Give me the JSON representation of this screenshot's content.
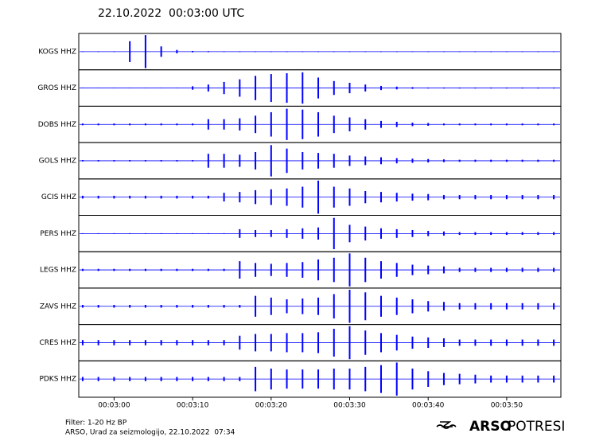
{
  "chart_data": {
    "type": "seismogram",
    "title": "22.10.2022  00:03:00 UTC",
    "x": [
      176,
      178,
      180,
      182,
      184,
      186,
      188,
      190,
      192,
      194,
      196,
      198,
      200,
      202,
      204,
      206,
      208,
      210,
      212,
      214,
      216,
      218,
      220,
      222,
      224,
      226,
      228,
      230,
      232,
      234,
      236
    ],
    "xlim": [
      175.5,
      236.9
    ],
    "xticks": [
      {
        "value": 180,
        "label": "00:03:00"
      },
      {
        "value": 190,
        "label": "00:03:10"
      },
      {
        "value": 200,
        "label": "00:03:20"
      },
      {
        "value": 210,
        "label": "00:03:30"
      },
      {
        "value": 220,
        "label": "00:03:40"
      },
      {
        "value": 230,
        "label": "00:03:50"
      }
    ],
    "series": [
      {
        "name": "KOGS HHZ",
        "color": "#0000ff",
        "values": [
          0.02,
          0.02,
          0.02,
          0.6,
          0.95,
          0.3,
          0.1,
          0.04,
          0.03,
          0.02,
          0.02,
          0.02,
          0.02,
          0.02,
          0.02,
          0.02,
          0.02,
          0.02,
          0.02,
          0.02,
          0.02,
          0.02,
          0.02,
          0.02,
          0.02,
          0.02,
          0.02,
          0.02,
          0.02,
          0.02,
          0.02
        ]
      },
      {
        "name": "GROS HHZ",
        "color": "#0000ff",
        "values": [
          0.02,
          0.02,
          0.02,
          0.02,
          0.02,
          0.02,
          0.02,
          0.1,
          0.2,
          0.35,
          0.5,
          0.7,
          0.8,
          0.85,
          0.9,
          0.6,
          0.4,
          0.3,
          0.2,
          0.12,
          0.08,
          0.05,
          0.03,
          0.03,
          0.03,
          0.03,
          0.03,
          0.03,
          0.03,
          0.03,
          0.03
        ]
      },
      {
        "name": "DOBS HHZ",
        "color": "#0000ff",
        "values": [
          0.05,
          0.05,
          0.05,
          0.05,
          0.05,
          0.05,
          0.05,
          0.05,
          0.3,
          0.3,
          0.35,
          0.5,
          0.7,
          0.9,
          0.85,
          0.7,
          0.5,
          0.4,
          0.3,
          0.2,
          0.15,
          0.1,
          0.08,
          0.05,
          0.05,
          0.05,
          0.05,
          0.05,
          0.05,
          0.05,
          0.05
        ]
      },
      {
        "name": "GOLS HHZ",
        "color": "#0000ff",
        "values": [
          0.04,
          0.04,
          0.04,
          0.04,
          0.04,
          0.04,
          0.04,
          0.04,
          0.4,
          0.4,
          0.35,
          0.5,
          0.9,
          0.7,
          0.5,
          0.45,
          0.4,
          0.3,
          0.25,
          0.2,
          0.15,
          0.12,
          0.1,
          0.08,
          0.06,
          0.06,
          0.06,
          0.06,
          0.06,
          0.06,
          0.06
        ]
      },
      {
        "name": "GCIS HHZ",
        "color": "#0000ff",
        "values": [
          0.08,
          0.08,
          0.08,
          0.08,
          0.08,
          0.08,
          0.08,
          0.08,
          0.08,
          0.25,
          0.3,
          0.4,
          0.45,
          0.5,
          0.6,
          0.95,
          0.6,
          0.5,
          0.35,
          0.3,
          0.25,
          0.2,
          0.18,
          0.12,
          0.12,
          0.12,
          0.12,
          0.12,
          0.12,
          0.12,
          0.12
        ]
      },
      {
        "name": "PERS HHZ",
        "color": "#0000ff",
        "values": [
          0.02,
          0.02,
          0.02,
          0.02,
          0.02,
          0.02,
          0.02,
          0.02,
          0.02,
          0.02,
          0.25,
          0.2,
          0.2,
          0.25,
          0.3,
          0.35,
          0.9,
          0.5,
          0.4,
          0.3,
          0.25,
          0.2,
          0.15,
          0.12,
          0.08,
          0.08,
          0.08,
          0.08,
          0.08,
          0.08,
          0.08
        ]
      },
      {
        "name": "LEGS HHZ",
        "color": "#0000ff",
        "values": [
          0.06,
          0.06,
          0.06,
          0.06,
          0.06,
          0.06,
          0.06,
          0.06,
          0.06,
          0.06,
          0.5,
          0.4,
          0.35,
          0.4,
          0.45,
          0.6,
          0.7,
          0.95,
          0.7,
          0.5,
          0.4,
          0.3,
          0.25,
          0.2,
          0.12,
          0.12,
          0.12,
          0.12,
          0.12,
          0.12,
          0.12
        ]
      },
      {
        "name": "ZAVS HHZ",
        "color": "#0000ff",
        "values": [
          0.08,
          0.08,
          0.08,
          0.08,
          0.08,
          0.08,
          0.08,
          0.08,
          0.08,
          0.08,
          0.08,
          0.6,
          0.5,
          0.4,
          0.45,
          0.5,
          0.7,
          0.95,
          0.8,
          0.6,
          0.5,
          0.4,
          0.3,
          0.25,
          0.18,
          0.18,
          0.18,
          0.18,
          0.18,
          0.18,
          0.18
        ]
      },
      {
        "name": "CRES HHZ",
        "color": "#0000ff",
        "values": [
          0.15,
          0.15,
          0.15,
          0.15,
          0.15,
          0.15,
          0.15,
          0.15,
          0.15,
          0.15,
          0.4,
          0.5,
          0.5,
          0.55,
          0.55,
          0.6,
          0.8,
          0.95,
          0.7,
          0.55,
          0.45,
          0.35,
          0.3,
          0.25,
          0.18,
          0.18,
          0.18,
          0.18,
          0.18,
          0.18,
          0.18
        ]
      },
      {
        "name": "PDKS HHZ",
        "color": "#0000ff",
        "values": [
          0.12,
          0.12,
          0.12,
          0.12,
          0.12,
          0.12,
          0.12,
          0.12,
          0.12,
          0.12,
          0.12,
          0.7,
          0.6,
          0.55,
          0.55,
          0.55,
          0.6,
          0.6,
          0.7,
          0.8,
          0.95,
          0.6,
          0.45,
          0.35,
          0.3,
          0.25,
          0.2,
          0.2,
          0.2,
          0.2,
          0.2
        ]
      }
    ],
    "footer": [
      "Filter: 1-20 Hz BP",
      "ARSO, Urad za seizmologijo, 22.10.2022  07:34"
    ],
    "brand": {
      "bold": "ARSO",
      "light": "POTRESI"
    }
  }
}
